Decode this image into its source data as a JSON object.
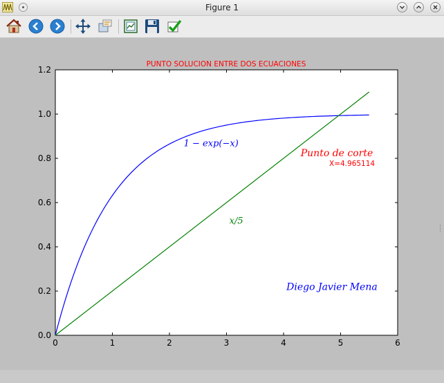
{
  "window": {
    "title": "Figure 1"
  },
  "toolbar": {
    "buttons": [
      {
        "name": "home-button",
        "icon": "home-icon"
      },
      {
        "name": "back-button",
        "icon": "arrow-left-icon"
      },
      {
        "name": "forward-button",
        "icon": "arrow-right-icon"
      },
      {
        "name": "pan-button",
        "icon": "move-icon"
      },
      {
        "name": "zoom-button",
        "icon": "zoom-rect-icon"
      },
      {
        "name": "subplots-button",
        "icon": "subplots-icon"
      },
      {
        "name": "save-button",
        "icon": "floppy-icon"
      },
      {
        "name": "edit-axis-button",
        "icon": "checkmark-icon"
      }
    ]
  },
  "chart_data": {
    "type": "line",
    "title": "PUNTO SOLUCION ENTRE DOS ECUACIONES",
    "title_color": "#ff0000",
    "xlabel": "",
    "ylabel": "",
    "xlim": [
      0,
      6
    ],
    "ylim": [
      0,
      1.2
    ],
    "xticks": [
      "0",
      "1",
      "2",
      "3",
      "4",
      "5",
      "6"
    ],
    "yticks": [
      "0.0",
      "0.2",
      "0.4",
      "0.6",
      "0.8",
      "1.0",
      "1.2"
    ],
    "grid": false,
    "series": [
      {
        "function": "1 - exp(-x)",
        "x_range": [
          0,
          5.5
        ],
        "color": "#0000ff",
        "x": [
          0,
          0.25,
          0.5,
          0.75,
          1.0,
          1.25,
          1.5,
          1.75,
          2.0,
          2.25,
          2.5,
          2.75,
          3.0,
          3.25,
          3.5,
          3.75,
          4.0,
          4.25,
          4.5,
          4.75,
          5.0,
          5.25,
          5.5
        ],
        "y": [
          0.0,
          0.221,
          0.393,
          0.528,
          0.632,
          0.713,
          0.777,
          0.826,
          0.865,
          0.895,
          0.918,
          0.936,
          0.95,
          0.961,
          0.97,
          0.976,
          0.982,
          0.986,
          0.989,
          0.991,
          0.993,
          0.995,
          0.996
        ]
      },
      {
        "function": "x / 5",
        "x_range": [
          0,
          5.5
        ],
        "color": "#008000",
        "x": [
          0,
          5.5
        ],
        "y": [
          0,
          1.1
        ]
      }
    ],
    "annotations": [
      {
        "text": "1 − exp(−x)",
        "x": 2.25,
        "y": 0.855,
        "color": "#0000ff",
        "style": "math"
      },
      {
        "text": "x/5",
        "x": 3.05,
        "y": 0.505,
        "color": "#008000",
        "style": "math"
      },
      {
        "text": "Punto de corte",
        "x": 4.3,
        "y": 0.81,
        "color": "#ff0000",
        "style": "math"
      },
      {
        "text": "X=4.965114",
        "x": 4.8,
        "y": 0.765,
        "color": "#ff0000",
        "style": "plain"
      },
      {
        "text": "Diego Javier Mena",
        "x": 4.05,
        "y": 0.205,
        "color": "#0000ff",
        "style": "math"
      }
    ]
  }
}
